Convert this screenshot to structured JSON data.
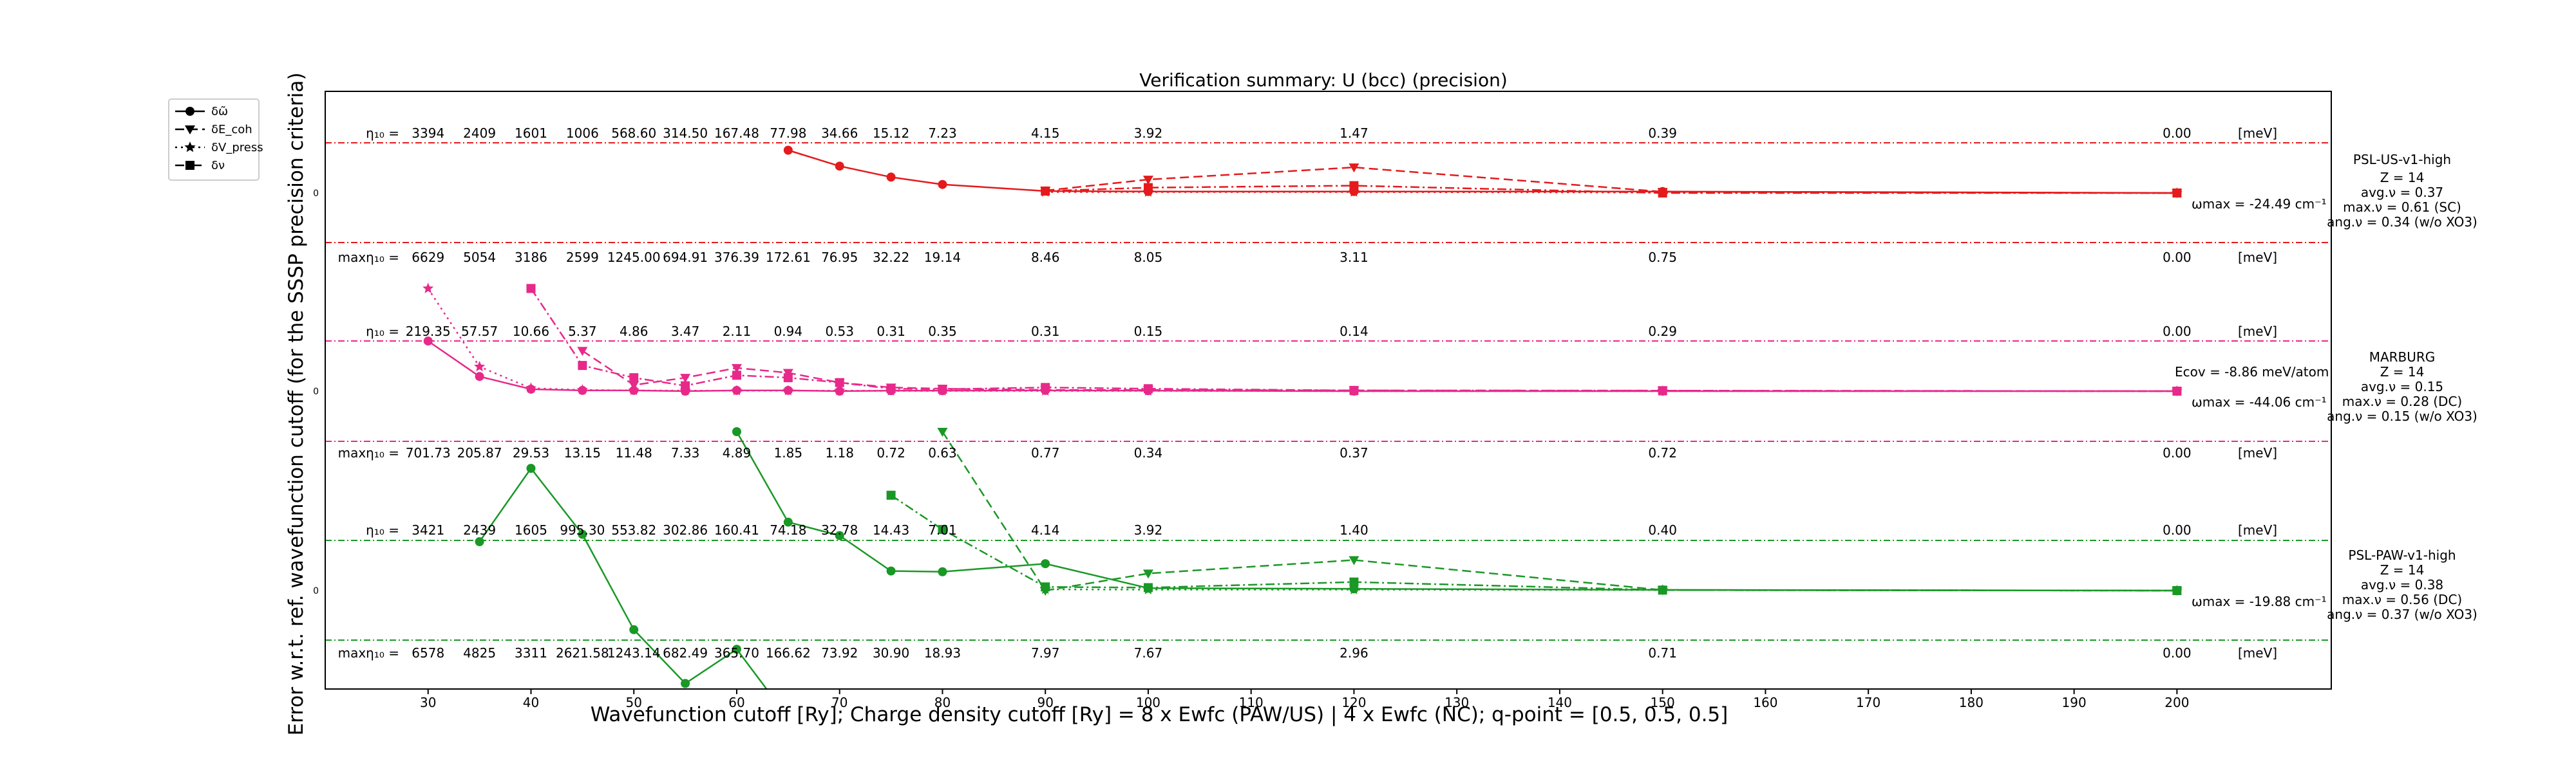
{
  "chart_data": {
    "type": "line",
    "title": "Verification summary: U (bcc) (precision)",
    "xlabel": "Wavefunction cutoff [Ry]; Charge density cutoff [Ry] = 8 x Ewfc (PAW/US) | 4 x Ewfc (NC); q-point = [0.5, 0.5, 0.5]",
    "ylabel": "Error w.r.t. ref. wavefunction cutoff (for the SSSP precision criteria)",
    "xlim": [
      20,
      215
    ],
    "x_ticks": [
      30,
      40,
      50,
      60,
      70,
      80,
      90,
      100,
      110,
      120,
      130,
      140,
      150,
      160,
      170,
      180,
      190,
      200
    ],
    "grid": false,
    "legend_position": "top-left",
    "legend": [
      {
        "label": "δω̃",
        "style": "solid",
        "marker": "circle"
      },
      {
        "label": "δE_coh",
        "style": "dashed",
        "marker": "triangle-down"
      },
      {
        "label": "δV_press",
        "style": "dotted",
        "marker": "star"
      },
      {
        "label": "δν",
        "style": "dashdot",
        "marker": "square"
      }
    ],
    "x": [
      30,
      35,
      40,
      45,
      50,
      55,
      60,
      65,
      70,
      75,
      80,
      90,
      100,
      120,
      150,
      200
    ],
    "unit_label": "[meV]",
    "panels": [
      {
        "name": "PSL-US-v1-high",
        "color": "#e41a1c",
        "info": [
          "PSL-US-v1-high",
          "Z = 14",
          "avg.ν = 0.37",
          "max.ν = 0.61 (SC)",
          "ang.ν = 0.34 (w/o XO3)"
        ],
        "omega_max": "-24.49",
        "ecov": "",
        "eta_prefix": "η₁₀ =",
        "maxeta_prefix": "maxη₁₀ =",
        "eta_row": [
          "3394",
          "2409",
          "1601",
          "1006",
          "568.60",
          "314.50",
          "167.48",
          "77.98",
          "34.66",
          "15.12",
          "7.23",
          "4.15",
          "3.92",
          "1.47",
          "0.39",
          "0.00"
        ],
        "maxeta_row": [
          "6629",
          "5054",
          "3186",
          "2599",
          "1245.00",
          "694.91",
          "376.39",
          "172.61",
          "76.95",
          "32.22",
          "19.14",
          "8.46",
          "8.05",
          "3.11",
          "0.75",
          "0.00"
        ],
        "series": {
          "omega": {
            "x": [
              65,
              70,
              75,
              80,
              90,
              100,
              120,
              150,
              200
            ],
            "y": [
              1.75,
              1.1,
              0.65,
              0.35,
              0.08,
              0.06,
              0.06,
              0.06,
              0.0
            ]
          },
          "coh": {
            "x": [
              90,
              100,
              120,
              150,
              200
            ],
            "y": [
              0.1,
              0.55,
              1.05,
              0.05,
              0.0
            ]
          },
          "press": {
            "x": [
              90,
              100,
              120,
              150,
              200
            ],
            "y": [
              0.04,
              0.04,
              0.04,
              0.02,
              0.0
            ]
          },
          "nu": {
            "x": [
              90,
              100,
              120,
              150,
              200
            ],
            "y": [
              0.08,
              0.22,
              0.3,
              0.0,
              0.0
            ]
          }
        }
      },
      {
        "name": "MARBURG",
        "color": "#e7298a",
        "info": [
          "MARBURG",
          "Z = 14",
          "avg.ν = 0.15",
          "max.ν = 0.28 (DC)",
          "ang.ν = 0.15 (w/o XO3)"
        ],
        "omega_max": "-44.06",
        "ecov": "-8.86",
        "eta_prefix": "η₁₀ =",
        "maxeta_prefix": "maxη₁₀ =",
        "eta_row": [
          "219.35",
          "57.57",
          "10.66",
          "5.37",
          "4.86",
          "3.47",
          "2.11",
          "0.94",
          "0.53",
          "0.31",
          "0.35",
          "0.31",
          "0.15",
          "0.14",
          "0.29",
          "0.00"
        ],
        "maxeta_row": [
          "701.73",
          "205.87",
          "29.53",
          "13.15",
          "11.48",
          "7.33",
          "4.89",
          "1.85",
          "1.18",
          "0.72",
          "0.63",
          "0.77",
          "0.34",
          "0.37",
          "0.72",
          "0.00"
        ],
        "series": {
          "omega": {
            "x": [
              30,
              35,
              40,
              45,
              50,
              55,
              60,
              65,
              70,
              75,
              80,
              90,
              100,
              120,
              150,
              200
            ],
            "y": [
              2.05,
              0.6,
              0.08,
              0.03,
              0.03,
              0.0,
              0.03,
              0.03,
              0.0,
              0.02,
              0.02,
              0.03,
              0.02,
              0.0,
              0.0,
              0.0
            ]
          },
          "coh": {
            "x": [
              45,
              50,
              55,
              60,
              65,
              70,
              75,
              80,
              90,
              100,
              120,
              150,
              200
            ],
            "y": [
              1.65,
              0.25,
              0.55,
              0.95,
              0.75,
              0.35,
              0.15,
              0.1,
              0.05,
              0.05,
              0.03,
              0.02,
              0.0
            ]
          },
          "press": {
            "x": [
              30,
              35,
              40,
              45,
              50,
              55,
              60,
              65,
              70,
              75,
              80,
              90,
              100,
              120,
              150,
              200
            ],
            "y": [
              4.2,
              1.0,
              0.12,
              0.05,
              0.03,
              0.02,
              0.02,
              0.02,
              0.02,
              0.01,
              0.01,
              0.01,
              0.01,
              0.0,
              0.0,
              0.0
            ]
          },
          "nu": {
            "x": [
              40,
              45,
              50,
              55,
              60,
              65,
              70,
              75,
              80,
              90,
              100,
              120,
              150,
              200
            ],
            "y": [
              4.2,
              1.05,
              0.55,
              0.22,
              0.65,
              0.55,
              0.35,
              0.1,
              0.08,
              0.15,
              0.1,
              0.03,
              0.02,
              0.0
            ]
          }
        }
      },
      {
        "name": "PSL-PAW-v1-high",
        "color": "#1a9826",
        "info": [
          "PSL-PAW-v1-high",
          "Z = 14",
          "avg.ν = 0.38",
          "max.ν = 0.56 (DC)",
          "ang.ν = 0.37 (w/o XO3)"
        ],
        "omega_max": "-19.88",
        "ecov": "",
        "eta_prefix": "η₁₀ =",
        "maxeta_prefix": "maxη₁₀ =",
        "eta_row": [
          "3421",
          "2439",
          "1605",
          "995.30",
          "553.82",
          "302.86",
          "160.41",
          "74.18",
          "32.78",
          "14.43",
          "7.01",
          "4.14",
          "3.92",
          "1.40",
          "0.40",
          "0.00"
        ],
        "maxeta_row": [
          "6578",
          "4825",
          "3311",
          "2621.58",
          "1243.14",
          "682.49",
          "365.70",
          "166.62",
          "73.92",
          "30.90",
          "18.93",
          "7.97",
          "7.67",
          "2.96",
          "0.71",
          "0.00"
        ],
        "series": {
          "omega": {
            "x": [
              60,
              65,
              70,
              75,
              80,
              90,
              100,
              120,
              150,
              200
            ],
            "y": [
              6.5,
              2.8,
              2.25,
              0.8,
              0.77,
              1.1,
              0.1,
              0.07,
              0.03,
              0.0
            ]
          },
          "coh": {
            "x": [
              80,
              90,
              100,
              120,
              150,
              200
            ],
            "y": [
              6.5,
              0.0,
              0.7,
              1.25,
              0.02,
              0.0
            ]
          },
          "press": {
            "x": [
              90,
              100,
              120,
              150,
              200
            ],
            "y": [
              0.05,
              0.04,
              0.04,
              0.02,
              0.0
            ]
          },
          "nu": {
            "x": [
              75,
              80,
              90,
              100,
              120,
              150,
              200
            ],
            "y": [
              3.9,
              2.5,
              0.15,
              0.12,
              0.35,
              0.02,
              0.0
            ]
          }
        },
        "spill": {
          "omega": {
            "x": [
              35,
              40,
              45,
              50,
              55,
              60,
              65
            ],
            "y": [
              2.0,
              5.0,
              2.3,
              -1.6,
              -3.8,
              -2.4,
              -5.2
            ]
          }
        }
      }
    ]
  }
}
